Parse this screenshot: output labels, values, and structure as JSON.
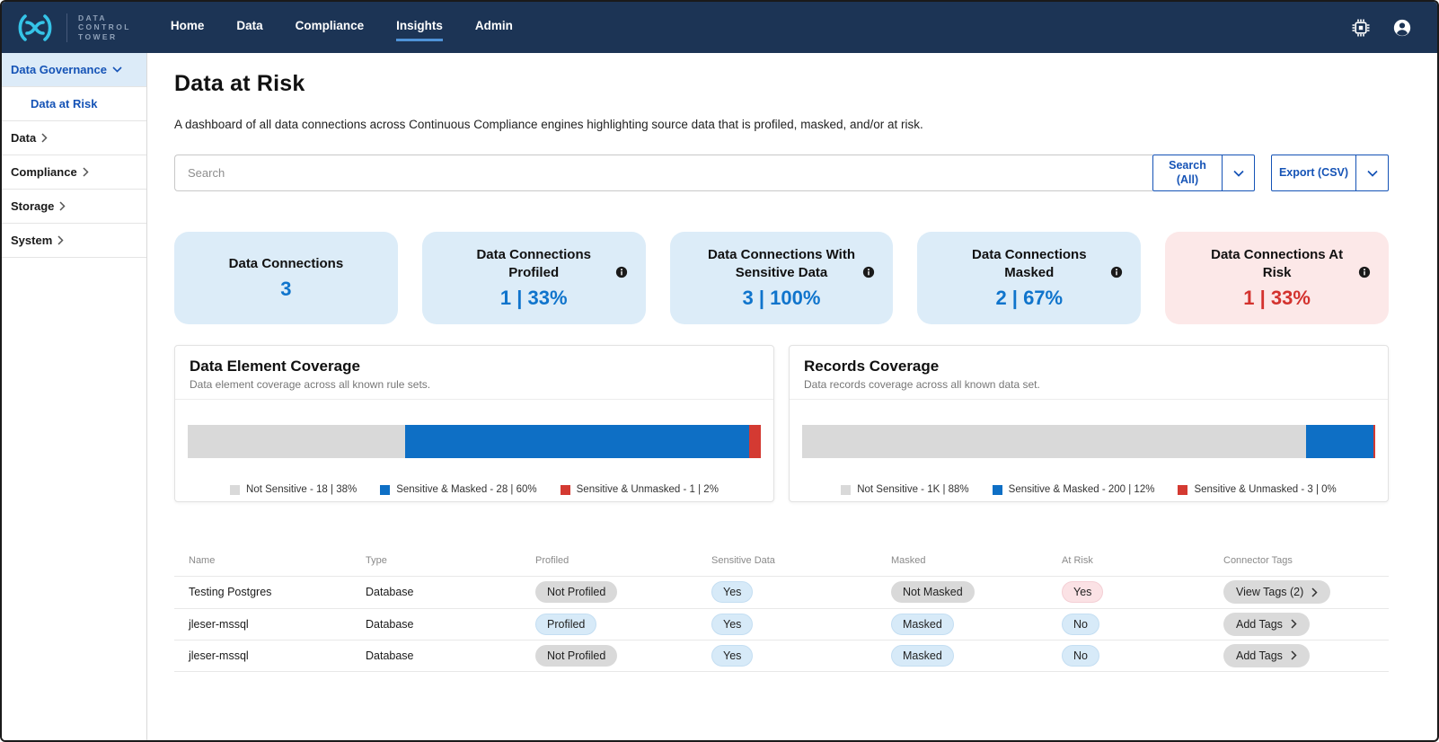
{
  "navbar": {
    "brand": [
      "DATA",
      "CONTROL",
      "TOWER"
    ],
    "items": [
      {
        "label": "Home",
        "active": false
      },
      {
        "label": "Data",
        "active": false
      },
      {
        "label": "Compliance",
        "active": false
      },
      {
        "label": "Insights",
        "active": true
      },
      {
        "label": "Admin",
        "active": false
      }
    ],
    "icons": [
      "chip-icon",
      "account-icon"
    ]
  },
  "sidebar": {
    "items": [
      {
        "label": "Data Governance",
        "expanded": true
      },
      {
        "label": "Data at Risk",
        "active": true
      },
      {
        "label": "Data"
      },
      {
        "label": "Compliance"
      },
      {
        "label": "Storage"
      },
      {
        "label": "System"
      }
    ]
  },
  "page": {
    "title": "Data at Risk",
    "description": "A dashboard of all data connections across Continuous Compliance engines highlighting source data that is profiled, masked, and/or at risk."
  },
  "toolbar": {
    "search_placeholder": "Search",
    "search_button": "Search (All)",
    "export_button": "Export (CSV)"
  },
  "stat_cards": [
    {
      "title": "Data Connections",
      "value": "3",
      "info": false,
      "variant": "blue"
    },
    {
      "title": "Data Connections Profiled",
      "value": "1 | 33%",
      "info": true,
      "variant": "blue"
    },
    {
      "title": "Data Connections With Sensitive Data",
      "value": "3 | 100%",
      "info": true,
      "variant": "blue"
    },
    {
      "title": "Data Connections Masked",
      "value": "2 | 67%",
      "info": true,
      "variant": "blue"
    },
    {
      "title": "Data Connections At Risk",
      "value": "1 | 33%",
      "info": true,
      "variant": "red"
    }
  ],
  "chart_data": [
    {
      "type": "bar",
      "orientation": "horizontal-stacked",
      "title": "Data Element Coverage",
      "subtitle": "Data element coverage across all known rule sets.",
      "legend_position": "bottom-center",
      "series": [
        {
          "name": "Not Sensitive",
          "value": 18,
          "percent": 38,
          "color": "#d9d9d9",
          "label": "Not Sensitive - 18 | 38%"
        },
        {
          "name": "Sensitive & Masked",
          "value": 28,
          "percent": 60,
          "color": "#0e6fc5",
          "label": "Sensitive & Masked - 28 | 60%"
        },
        {
          "name": "Sensitive & Unmasked",
          "value": 1,
          "percent": 2,
          "color": "#d43a32",
          "label": "Sensitive & Unmasked - 1 | 2%"
        }
      ],
      "render_widths": [
        38,
        60,
        2
      ]
    },
    {
      "type": "bar",
      "orientation": "horizontal-stacked",
      "title": "Records Coverage",
      "subtitle": "Data records coverage across all known data set.",
      "legend_position": "bottom-center",
      "series": [
        {
          "name": "Not Sensitive",
          "value": "1K",
          "percent": 88,
          "color": "#d9d9d9",
          "label": "Not Sensitive - 1K | 88%"
        },
        {
          "name": "Sensitive & Masked",
          "value": 200,
          "percent": 12,
          "color": "#0e6fc5",
          "label": "Sensitive & Masked - 200 | 12%"
        },
        {
          "name": "Sensitive & Unmasked",
          "value": 3,
          "percent": 0,
          "color": "#d43a32",
          "label": "Sensitive & Unmasked - 3 | 0%"
        }
      ],
      "render_widths": [
        88,
        11.7,
        0.3
      ]
    }
  ],
  "table": {
    "columns": [
      "Name",
      "Type",
      "Profiled",
      "Sensitive Data",
      "Masked",
      "At Risk",
      "Connector Tags"
    ],
    "rows": [
      {
        "name": "Testing Postgres",
        "type": "Database",
        "profiled": "Not Profiled",
        "sensitive": "Yes",
        "masked": "Not Masked",
        "at_risk": "Yes",
        "tags": "View Tags (2)"
      },
      {
        "name": "jleser-mssql",
        "type": "Database",
        "profiled": "Profiled",
        "sensitive": "Yes",
        "masked": "Masked",
        "at_risk": "No",
        "tags": "Add Tags"
      },
      {
        "name": "jleser-mssql",
        "type": "Database",
        "profiled": "Not Profiled",
        "sensitive": "Yes",
        "masked": "Masked",
        "at_risk": "No",
        "tags": "Add Tags"
      }
    ]
  },
  "colors": {
    "navbar_bg": "#1c3455",
    "logo_cyan": "#35c4e8",
    "nav_active_underline": "#4f93d8",
    "accent_blue": "#1553b6",
    "value_blue": "#0f74cc",
    "risk_red": "#d3322e",
    "card_blue_bg": "#dcecf8",
    "card_red_bg": "#fce8e8",
    "bar_gray": "#d9d9d9",
    "bar_blue": "#0e6fc5",
    "bar_red": "#d43a32",
    "pill_blue_bg": "#d7eaf8",
    "pill_gray_bg": "#d9d9d9",
    "pill_pink_bg": "#fbe2e5"
  }
}
